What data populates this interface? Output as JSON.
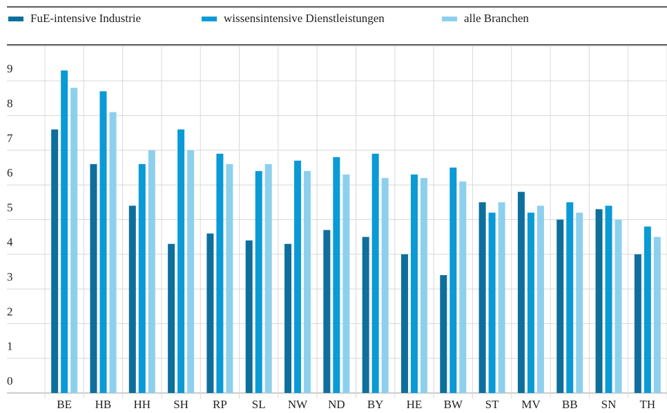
{
  "chart_data": {
    "type": "bar",
    "categories": [
      "BE",
      "HB",
      "HH",
      "SH",
      "RP",
      "SL",
      "NW",
      "ND",
      "BY",
      "HE",
      "BW",
      "ST",
      "MV",
      "BB",
      "SN",
      "TH"
    ],
    "series": [
      {
        "name": "FuE-intensive Industrie",
        "color": "#0e6f9c",
        "values": [
          7.6,
          6.6,
          5.4,
          4.3,
          4.6,
          4.4,
          4.3,
          4.7,
          4.5,
          4.0,
          3.4,
          5.5,
          5.8,
          5.0,
          5.3,
          4.0
        ]
      },
      {
        "name": "wissensintensive Dienstleistungen",
        "color": "#0a9ad6",
        "values": [
          9.3,
          8.7,
          6.6,
          7.6,
          6.9,
          6.4,
          6.7,
          6.8,
          6.9,
          6.3,
          6.5,
          5.2,
          5.2,
          5.5,
          5.4,
          4.8
        ]
      },
      {
        "name": "alle Branchen",
        "color": "#8dd0ee",
        "values": [
          8.8,
          8.1,
          7.0,
          7.0,
          6.6,
          6.6,
          6.4,
          6.3,
          6.2,
          6.2,
          6.1,
          5.5,
          5.4,
          5.2,
          5.0,
          4.5
        ]
      }
    ],
    "ylim": [
      0,
      10
    ],
    "yticks": [
      0,
      1,
      2,
      3,
      4,
      5,
      6,
      7,
      8,
      9
    ],
    "grid": true
  }
}
